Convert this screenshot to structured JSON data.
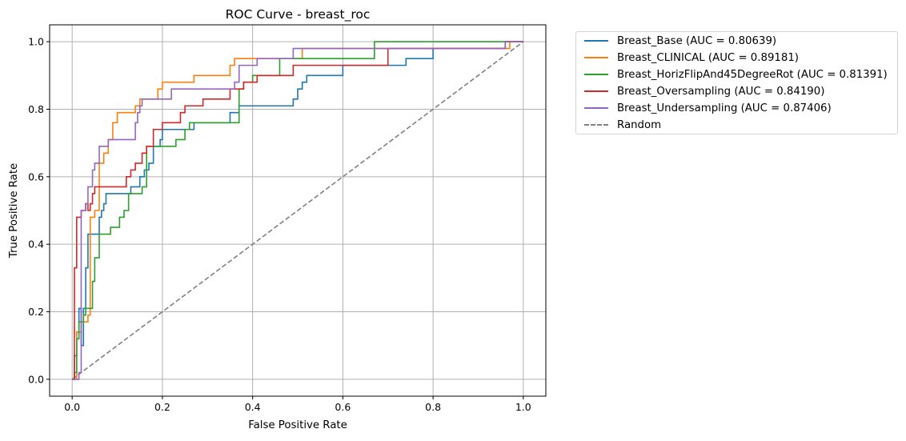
{
  "chart_data": {
    "type": "line",
    "title": "ROC Curve - breast_roc",
    "xlabel": "False Positive Rate",
    "ylabel": "True Positive Rate",
    "xlim": [
      -0.05,
      1.05
    ],
    "ylim": [
      -0.05,
      1.05
    ],
    "xticks": [
      "0.0",
      "0.2",
      "0.4",
      "0.6",
      "0.8",
      "1.0"
    ],
    "yticks": [
      "0.0",
      "0.2",
      "0.4",
      "0.6",
      "0.8",
      "1.0"
    ],
    "grid": true,
    "legend_position": "outside-top-right",
    "series": [
      {
        "name": "Breast_Base (AUC = 0.80639)",
        "color": "#1f77b4",
        "style": "solid",
        "x": [
          0,
          0.005,
          0.005,
          0.01,
          0.01,
          0.015,
          0.015,
          0.02,
          0.02,
          0.025,
          0.025,
          0.03,
          0.03,
          0.035,
          0.035,
          0.06,
          0.06,
          0.065,
          0.065,
          0.07,
          0.07,
          0.075,
          0.075,
          0.085,
          0.085,
          0.09,
          0.09,
          0.13,
          0.13,
          0.14,
          0.14,
          0.15,
          0.15,
          0.16,
          0.16,
          0.17,
          0.17,
          0.18,
          0.18,
          0.195,
          0.195,
          0.2,
          0.2,
          0.27,
          0.27,
          0.35,
          0.35,
          0.37,
          0.37,
          0.38,
          0.38,
          0.49,
          0.49,
          0.5,
          0.5,
          0.51,
          0.51,
          0.52,
          0.52,
          0.6,
          0.6,
          0.74,
          0.74,
          0.8,
          0.8,
          0.82,
          0.82,
          0.96,
          0.96,
          1.0
        ],
        "y": [
          0,
          0,
          0.07,
          0.07,
          0.14,
          0.14,
          0.21,
          0.21,
          0.1,
          0.1,
          0.21,
          0.21,
          0.33,
          0.33,
          0.43,
          0.43,
          0.48,
          0.48,
          0.5,
          0.5,
          0.52,
          0.52,
          0.55,
          0.55,
          0.55,
          0.55,
          0.55,
          0.55,
          0.57,
          0.57,
          0.57,
          0.57,
          0.6,
          0.6,
          0.62,
          0.62,
          0.64,
          0.64,
          0.69,
          0.69,
          0.71,
          0.71,
          0.74,
          0.74,
          0.76,
          0.76,
          0.79,
          0.79,
          0.81,
          0.81,
          0.81,
          0.81,
          0.83,
          0.83,
          0.86,
          0.86,
          0.88,
          0.88,
          0.9,
          0.9,
          0.93,
          0.93,
          0.95,
          0.95,
          0.98,
          0.98,
          0.98,
          0.98,
          1.0,
          1.0
        ]
      },
      {
        "name": "Breast_CLINICAL (AUC = 0.89181)",
        "color": "#ff7f0e",
        "style": "solid",
        "x": [
          0,
          0.01,
          0.01,
          0.02,
          0.02,
          0.035,
          0.035,
          0.04,
          0.04,
          0.05,
          0.05,
          0.06,
          0.06,
          0.07,
          0.07,
          0.08,
          0.08,
          0.09,
          0.09,
          0.1,
          0.1,
          0.14,
          0.14,
          0.15,
          0.15,
          0.19,
          0.19,
          0.2,
          0.2,
          0.27,
          0.27,
          0.35,
          0.35,
          0.36,
          0.36,
          0.51,
          0.51,
          0.76,
          0.76,
          0.97,
          0.97,
          1.0
        ],
        "y": [
          0,
          0,
          0.14,
          0.14,
          0.17,
          0.17,
          0.19,
          0.19,
          0.48,
          0.48,
          0.5,
          0.5,
          0.64,
          0.64,
          0.67,
          0.67,
          0.71,
          0.71,
          0.76,
          0.76,
          0.79,
          0.79,
          0.81,
          0.81,
          0.83,
          0.83,
          0.86,
          0.86,
          0.88,
          0.88,
          0.9,
          0.9,
          0.93,
          0.93,
          0.95,
          0.95,
          0.98,
          0.98,
          0.98,
          0.98,
          1.0,
          1.0
        ]
      },
      {
        "name": "Breast_HorizFlipAnd45DegreeRot (AUC = 0.81391)",
        "color": "#2ca02c",
        "style": "solid",
        "x": [
          0,
          0.005,
          0.005,
          0.01,
          0.01,
          0.015,
          0.015,
          0.025,
          0.025,
          0.03,
          0.03,
          0.04,
          0.04,
          0.045,
          0.045,
          0.05,
          0.05,
          0.06,
          0.06,
          0.085,
          0.085,
          0.105,
          0.105,
          0.115,
          0.115,
          0.125,
          0.125,
          0.155,
          0.155,
          0.165,
          0.165,
          0.22,
          0.22,
          0.23,
          0.23,
          0.25,
          0.25,
          0.26,
          0.26,
          0.37,
          0.37,
          0.38,
          0.38,
          0.4,
          0.4,
          0.46,
          0.46,
          0.67,
          0.67,
          0.96,
          0.96,
          1.0
        ],
        "y": [
          0,
          0,
          0.02,
          0.02,
          0.12,
          0.12,
          0.17,
          0.17,
          0.19,
          0.19,
          0.21,
          0.21,
          0.21,
          0.21,
          0.29,
          0.29,
          0.36,
          0.36,
          0.43,
          0.43,
          0.45,
          0.45,
          0.48,
          0.48,
          0.5,
          0.5,
          0.55,
          0.55,
          0.57,
          0.57,
          0.69,
          0.69,
          0.69,
          0.69,
          0.71,
          0.71,
          0.74,
          0.74,
          0.76,
          0.76,
          0.86,
          0.86,
          0.88,
          0.88,
          0.9,
          0.9,
          0.95,
          0.95,
          1.0,
          1.0,
          1.0,
          1.0
        ]
      },
      {
        "name": "Breast_Oversampling (AUC = 0.84190)",
        "color": "#d62728",
        "style": "solid",
        "x": [
          0,
          0.005,
          0.005,
          0.01,
          0.01,
          0.02,
          0.02,
          0.03,
          0.03,
          0.035,
          0.035,
          0.04,
          0.04,
          0.045,
          0.045,
          0.05,
          0.05,
          0.06,
          0.06,
          0.12,
          0.12,
          0.13,
          0.13,
          0.14,
          0.14,
          0.155,
          0.155,
          0.165,
          0.165,
          0.18,
          0.18,
          0.2,
          0.2,
          0.24,
          0.24,
          0.25,
          0.25,
          0.29,
          0.29,
          0.35,
          0.35,
          0.38,
          0.38,
          0.41,
          0.41,
          0.49,
          0.49,
          0.7,
          0.7,
          0.96,
          0.96,
          0.98,
          0.98,
          1.0
        ],
        "y": [
          0,
          0,
          0.33,
          0.33,
          0.48,
          0.48,
          0.5,
          0.5,
          0.52,
          0.52,
          0.5,
          0.5,
          0.52,
          0.52,
          0.55,
          0.55,
          0.57,
          0.57,
          0.57,
          0.57,
          0.6,
          0.6,
          0.62,
          0.62,
          0.64,
          0.64,
          0.67,
          0.67,
          0.69,
          0.69,
          0.74,
          0.74,
          0.76,
          0.76,
          0.79,
          0.79,
          0.81,
          0.81,
          0.83,
          0.83,
          0.86,
          0.86,
          0.88,
          0.88,
          0.9,
          0.9,
          0.93,
          0.93,
          0.98,
          0.98,
          1.0,
          1.0,
          1.0,
          1.0
        ]
      },
      {
        "name": "Breast_Undersampling (AUC = 0.87406)",
        "color": "#9467bd",
        "style": "solid",
        "x": [
          0,
          0.015,
          0.015,
          0.02,
          0.02,
          0.03,
          0.03,
          0.035,
          0.035,
          0.045,
          0.045,
          0.05,
          0.05,
          0.06,
          0.06,
          0.08,
          0.08,
          0.14,
          0.14,
          0.145,
          0.145,
          0.15,
          0.15,
          0.155,
          0.155,
          0.2,
          0.2,
          0.22,
          0.22,
          0.36,
          0.36,
          0.37,
          0.37,
          0.41,
          0.41,
          0.49,
          0.49,
          0.8,
          0.8,
          0.96,
          0.96,
          1.0
        ],
        "y": [
          0,
          0,
          0.02,
          0.02,
          0.5,
          0.5,
          0.52,
          0.52,
          0.57,
          0.57,
          0.62,
          0.62,
          0.64,
          0.64,
          0.69,
          0.69,
          0.71,
          0.71,
          0.76,
          0.76,
          0.79,
          0.79,
          0.81,
          0.81,
          0.83,
          0.83,
          0.83,
          0.83,
          0.86,
          0.86,
          0.88,
          0.88,
          0.93,
          0.93,
          0.95,
          0.95,
          0.98,
          0.98,
          0.98,
          0.98,
          1.0,
          1.0
        ]
      },
      {
        "name": "Random",
        "color": "#808080",
        "style": "dashed",
        "x": [
          0,
          1
        ],
        "y": [
          0,
          1
        ]
      }
    ]
  }
}
